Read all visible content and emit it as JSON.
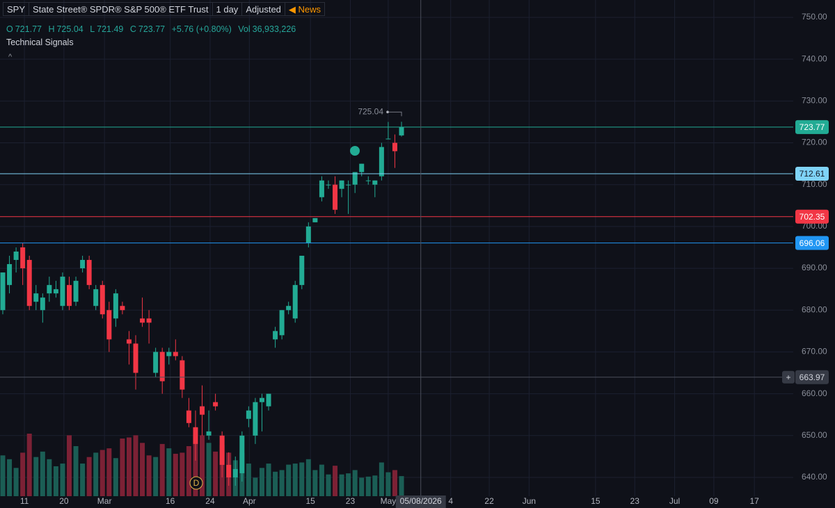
{
  "header": {
    "symbol": "SPY",
    "name": "State Street® SPDR® S&P 500® ETF Trust",
    "interval": "1 day",
    "adjustment": "Adjusted",
    "news": "News"
  },
  "ohlc_bar": {
    "open_label": "O",
    "high_label": "H",
    "low_label": "L",
    "close_label": "C",
    "change": "+5.76 (+0.80%)",
    "volume_label": "Vol",
    "volume": "36,933,226"
  },
  "indicator_panel": {
    "title": "Technical Signals",
    "toggle": "^"
  },
  "chart_data": {
    "type": "candlestick",
    "up_color": "#22ab94",
    "down_color": "#f23645",
    "up_volume_color": "#1b5e55",
    "down_volume_color": "#7c2135",
    "open": [
      680,
      686,
      692,
      695,
      692,
      682,
      680,
      684,
      684,
      681,
      686,
      682,
      690,
      692,
      681,
      686,
      680,
      678,
      681,
      673,
      672,
      678,
      678,
      665,
      670,
      669,
      670,
      668,
      656,
      652,
      657,
      650,
      658,
      650,
      643,
      640,
      641,
      654,
      650,
      658,
      657,
      673,
      674,
      680,
      678,
      686,
      696,
      701,
      707,
      710,
      710,
      709,
      710,
      710,
      713,
      711,
      710,
      712,
      721,
      720,
      721.77
    ],
    "high": [
      689,
      693,
      695,
      696,
      693,
      686,
      684,
      688,
      687,
      689,
      688,
      688,
      693,
      693,
      686,
      687,
      682,
      685,
      682,
      675,
      674,
      683,
      680,
      671,
      671,
      671,
      673,
      669,
      659,
      656,
      662,
      656,
      660,
      651,
      646,
      645,
      651,
      657,
      659,
      660,
      660,
      676,
      680,
      682,
      687,
      693,
      701,
      702,
      712,
      711,
      712,
      711,
      711,
      713,
      715,
      712,
      711,
      720,
      725,
      722,
      725.04
    ],
    "low": [
      679,
      684,
      689,
      686,
      680,
      680,
      677,
      682,
      683,
      680,
      680,
      681,
      689,
      685,
      680,
      678,
      670,
      676,
      679,
      667,
      661,
      676,
      672,
      664,
      660,
      667,
      668,
      659,
      652,
      644,
      650,
      649,
      656,
      640,
      638,
      638,
      639,
      652,
      648,
      651,
      656,
      671,
      673,
      679,
      677,
      685,
      695,
      701,
      706,
      709,
      703,
      707,
      703,
      708,
      712,
      710,
      707,
      711,
      721,
      714,
      721.49
    ],
    "close": [
      689,
      691,
      694,
      690,
      681,
      684,
      683,
      686,
      685,
      688,
      681,
      687,
      692,
      686,
      685,
      679,
      673,
      684,
      680,
      672,
      665,
      677,
      677,
      670,
      663,
      670,
      669,
      661,
      653,
      648,
      655,
      651,
      657,
      643,
      640,
      642,
      650,
      656,
      658,
      659,
      660,
      675,
      680,
      681,
      686,
      693,
      700,
      702,
      711,
      710,
      704,
      711,
      710,
      713,
      715,
      711,
      711,
      719,
      721,
      718,
      723.77
    ],
    "volume": [
      75000000,
      68000000,
      52000000,
      80000000,
      115000000,
      72000000,
      82000000,
      68000000,
      55000000,
      60000000,
      112000000,
      92000000,
      60000000,
      72000000,
      80000000,
      85000000,
      88000000,
      70000000,
      106000000,
      108000000,
      112000000,
      98000000,
      75000000,
      72000000,
      96000000,
      88000000,
      78000000,
      80000000,
      92000000,
      108000000,
      112000000,
      98000000,
      82000000,
      94000000,
      80000000,
      66000000,
      80000000,
      60000000,
      34000000,
      52000000,
      60000000,
      45000000,
      48000000,
      58000000,
      60000000,
      62000000,
      68000000,
      48000000,
      58000000,
      40000000,
      56000000,
      40000000,
      42000000,
      48000000,
      34000000,
      36000000,
      38000000,
      62000000,
      44000000,
      48000000,
      36933226
    ],
    "xlim": [
      -0.42,
      118.95
    ],
    "xticks": [
      {
        "value": 3.25,
        "label": "11"
      },
      {
        "value": 9.2,
        "label": "20"
      },
      {
        "value": 15.3,
        "label": "Mar"
      },
      {
        "value": 25.2,
        "label": "16"
      },
      {
        "value": 31.2,
        "label": "24"
      },
      {
        "value": 37.1,
        "label": "Apr"
      },
      {
        "value": 46.3,
        "label": "15"
      },
      {
        "value": 52.3,
        "label": "23"
      },
      {
        "value": 58.0,
        "label": "May"
      },
      {
        "value": 67.4,
        "label": "4"
      },
      {
        "value": 73.2,
        "label": "22"
      },
      {
        "value": 79.2,
        "label": "Jun"
      },
      {
        "value": 89.2,
        "label": "15"
      },
      {
        "value": 95.1,
        "label": "23"
      },
      {
        "value": 101.1,
        "label": "Jul"
      },
      {
        "value": 107.0,
        "label": "09"
      },
      {
        "value": 113.1,
        "label": "17"
      }
    ],
    "ylim": [
      635.51,
      754.15
    ],
    "yticks": [
      {
        "value": 640,
        "label": "640.00"
      },
      {
        "value": 650,
        "label": "650.00"
      },
      {
        "value": 660,
        "label": "660.00"
      },
      {
        "value": 670,
        "label": "670.00"
      },
      {
        "value": 680,
        "label": "680.00"
      },
      {
        "value": 690,
        "label": "690.00"
      },
      {
        "value": 700,
        "label": "700.00"
      },
      {
        "value": 710,
        "label": "710.00"
      },
      {
        "value": 720,
        "label": "720.00"
      },
      {
        "value": 730,
        "label": "730.00"
      },
      {
        "value": 740,
        "label": "740.00"
      },
      {
        "value": 750,
        "label": "750.00"
      }
    ],
    "grid": true,
    "price_lines": [
      {
        "value": 723.77,
        "color": "#22ab94",
        "text_color": "#ffffff"
      },
      {
        "value": 712.61,
        "color": "#7fd3f7",
        "text_color": "#131722"
      },
      {
        "value": 702.35,
        "color": "#f23645",
        "text_color": "#ffffff"
      },
      {
        "value": 696.06,
        "color": "#2196f3",
        "text_color": "#ffffff"
      }
    ],
    "crosshair": {
      "price": 663.97,
      "x": 62.9,
      "date": "05/08/2026"
    }
  }
}
